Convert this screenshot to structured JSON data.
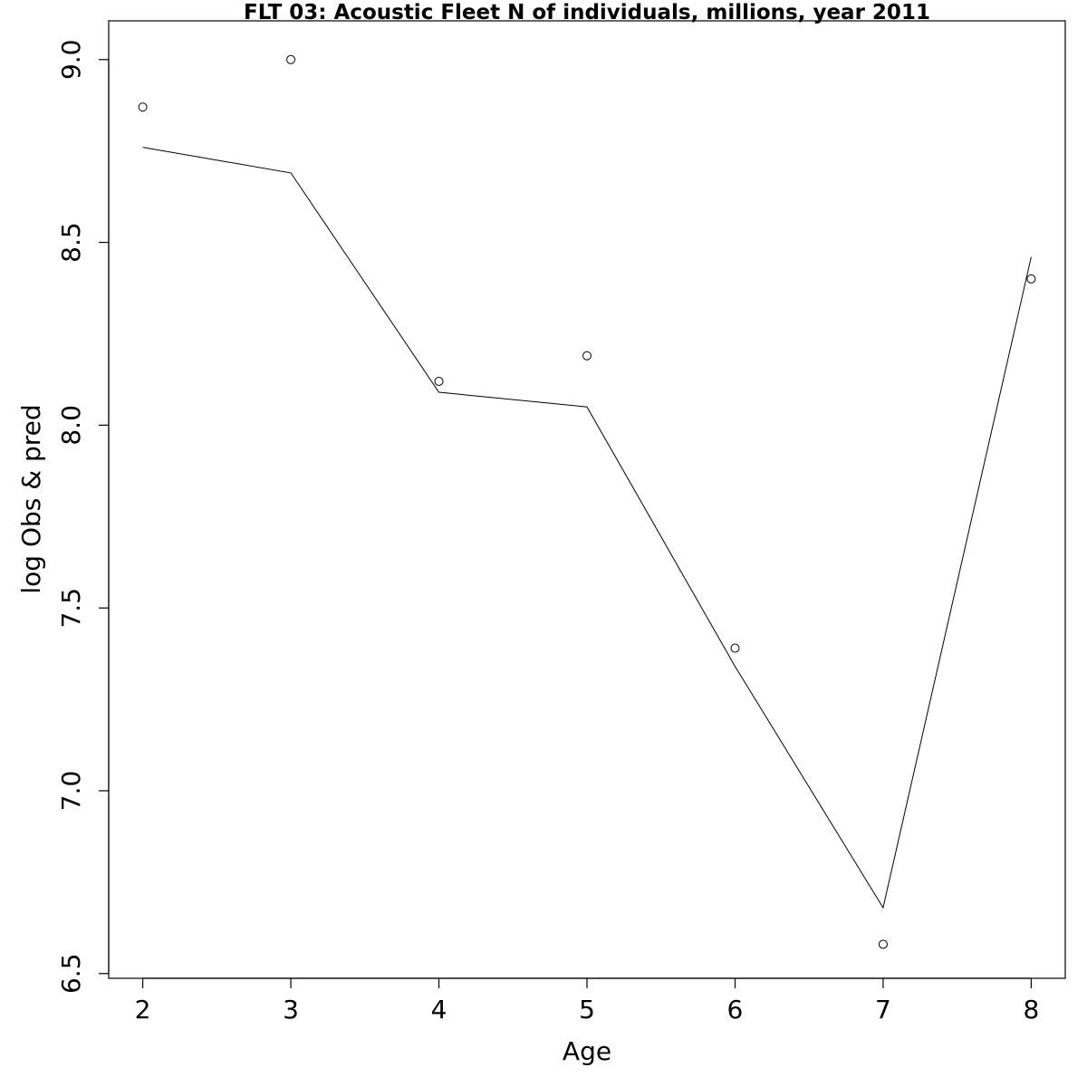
{
  "chart_data": {
    "type": "line",
    "title": "FLT 03: Acoustic Fleet  N of individuals, millions, year 2011",
    "xlabel": "Age",
    "ylabel": "log Obs & pred",
    "x": [
      2,
      3,
      4,
      5,
      6,
      7,
      8
    ],
    "series": [
      {
        "values": [
          8.87,
          9.0,
          8.12,
          8.19,
          7.39,
          6.58,
          8.4
        ],
        "style": "points"
      },
      {
        "values": [
          8.76,
          8.69,
          8.09,
          8.05,
          7.34,
          6.68,
          8.46
        ],
        "style": "line"
      }
    ],
    "xticks": [
      "2",
      "3",
      "4",
      "5",
      "6",
      "7",
      "8"
    ],
    "yticks": [
      "6.5",
      "7.0",
      "7.5",
      "8.0",
      "8.5",
      "9.0"
    ],
    "xlim": [
      1.77,
      8.23
    ],
    "ylim": [
      6.487,
      9.106
    ],
    "grid": false,
    "colors": {
      "points": "#000000",
      "line": "#000000"
    }
  }
}
